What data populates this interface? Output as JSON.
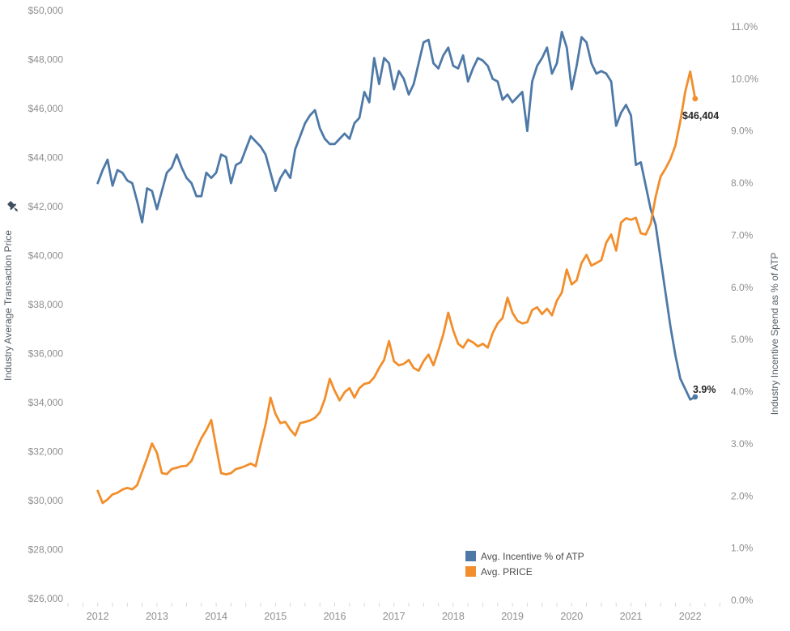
{
  "chart_data": {
    "type": "line",
    "title": "",
    "x_start": "2012-01",
    "x_interval": "monthly",
    "x_axis": {
      "tick_labels": [
        "2012",
        "2013",
        "2014",
        "2015",
        "2016",
        "2017",
        "2018",
        "2019",
        "2020",
        "2021",
        "2022"
      ],
      "tick_values": [
        2012,
        2013,
        2014,
        2015,
        2016,
        2017,
        2018,
        2019,
        2020,
        2021,
        2022
      ],
      "minor_ticks": "quarterly"
    },
    "left_axis": {
      "label": "Industry Average Transaction Price",
      "tick_labels": [
        "$26,000",
        "$28,000",
        "$30,000",
        "$32,000",
        "$34,000",
        "$36,000",
        "$38,000",
        "$40,000",
        "$42,000",
        "$44,000",
        "$46,000",
        "$48,000",
        "$50,000"
      ],
      "tick_values": [
        26000,
        28000,
        30000,
        32000,
        34000,
        36000,
        38000,
        40000,
        42000,
        44000,
        46000,
        48000,
        50000
      ],
      "range": [
        26000,
        50000
      ]
    },
    "right_axis": {
      "label": "Industry Incentive Spend as % of ATP",
      "tick_labels": [
        "0.0%",
        "1.0%",
        "2.0%",
        "3.0%",
        "4.0%",
        "5.0%",
        "6.0%",
        "7.0%",
        "8.0%",
        "9.0%",
        "10.0%",
        "11.0%"
      ],
      "tick_values": [
        0,
        1,
        2,
        3,
        4,
        5,
        6,
        7,
        8,
        9,
        10,
        11
      ],
      "range": [
        0,
        11
      ]
    },
    "grid": "off",
    "legend_position": "bottom-center",
    "icons": {
      "left_axis_pin": "pushpin-icon"
    },
    "series": [
      {
        "name": "Avg. Incentive % of ATP",
        "axis": "right",
        "color": "#4E79A7",
        "values": [
          8.0,
          8.25,
          8.45,
          7.95,
          8.25,
          8.2,
          8.05,
          8.0,
          7.65,
          7.25,
          7.9,
          7.85,
          7.5,
          7.85,
          8.2,
          8.3,
          8.55,
          8.3,
          8.1,
          8.0,
          7.75,
          7.75,
          8.2,
          8.1,
          8.2,
          8.55,
          8.5,
          8.0,
          8.35,
          8.4,
          8.65,
          8.9,
          8.8,
          8.7,
          8.55,
          8.2,
          7.85,
          8.1,
          8.25,
          8.1,
          8.65,
          8.9,
          9.15,
          9.3,
          9.4,
          9.05,
          8.85,
          8.75,
          8.75,
          8.85,
          8.95,
          8.85,
          9.15,
          9.25,
          9.75,
          9.55,
          10.4,
          9.9,
          10.4,
          10.3,
          9.8,
          10.15,
          10.0,
          9.7,
          9.9,
          10.3,
          10.7,
          10.75,
          10.3,
          10.2,
          10.45,
          10.6,
          10.25,
          10.2,
          10.45,
          9.95,
          10.2,
          10.4,
          10.35,
          10.25,
          10.0,
          9.95,
          9.6,
          9.7,
          9.55,
          9.65,
          9.75,
          9.0,
          9.95,
          10.25,
          10.4,
          10.6,
          10.1,
          10.3,
          10.9,
          10.6,
          9.8,
          10.25,
          10.8,
          10.7,
          10.3,
          10.1,
          10.15,
          10.1,
          9.95,
          9.1,
          9.35,
          9.5,
          9.3,
          8.35,
          8.4,
          7.95,
          7.5,
          7.2,
          6.55,
          5.9,
          5.25,
          4.7,
          4.25,
          4.05,
          3.85,
          3.9
        ]
      },
      {
        "name": "Avg. PRICE",
        "axis": "left",
        "color": "#F28E2B",
        "values": [
          30400,
          29900,
          30050,
          30250,
          30320,
          30450,
          30520,
          30460,
          30630,
          31180,
          31730,
          32330,
          31950,
          31120,
          31080,
          31290,
          31340,
          31400,
          31420,
          31620,
          32110,
          32550,
          32880,
          33290,
          32170,
          31120,
          31070,
          31120,
          31290,
          31340,
          31420,
          31510,
          31400,
          32280,
          33100,
          34200,
          33540,
          33160,
          33210,
          32900,
          32660,
          33160,
          33210,
          33270,
          33380,
          33600,
          34150,
          34970,
          34480,
          34090,
          34420,
          34590,
          34200,
          34590,
          34760,
          34810,
          35030,
          35410,
          35740,
          36510,
          35690,
          35520,
          35580,
          35740,
          35410,
          35300,
          35690,
          35960,
          35520,
          36130,
          36790,
          37670,
          36950,
          36400,
          36240,
          36570,
          36460,
          36290,
          36400,
          36240,
          36840,
          37230,
          37450,
          38280,
          37670,
          37340,
          37230,
          37280,
          37780,
          37890,
          37610,
          37830,
          37560,
          38160,
          38490,
          39430,
          38820,
          38990,
          39700,
          40030,
          39590,
          39700,
          39810,
          40530,
          40860,
          40200,
          41350,
          41520,
          41460,
          41540,
          40910,
          40860,
          41300,
          42400,
          43220,
          43550,
          43940,
          44490,
          45480,
          46690,
          47510,
          46404
        ]
      }
    ],
    "annotations": [
      {
        "text": "$46,404",
        "series": "Avg. PRICE"
      },
      {
        "text": "3.9%",
        "series": "Avg. Incentive % of ATP"
      }
    ]
  }
}
